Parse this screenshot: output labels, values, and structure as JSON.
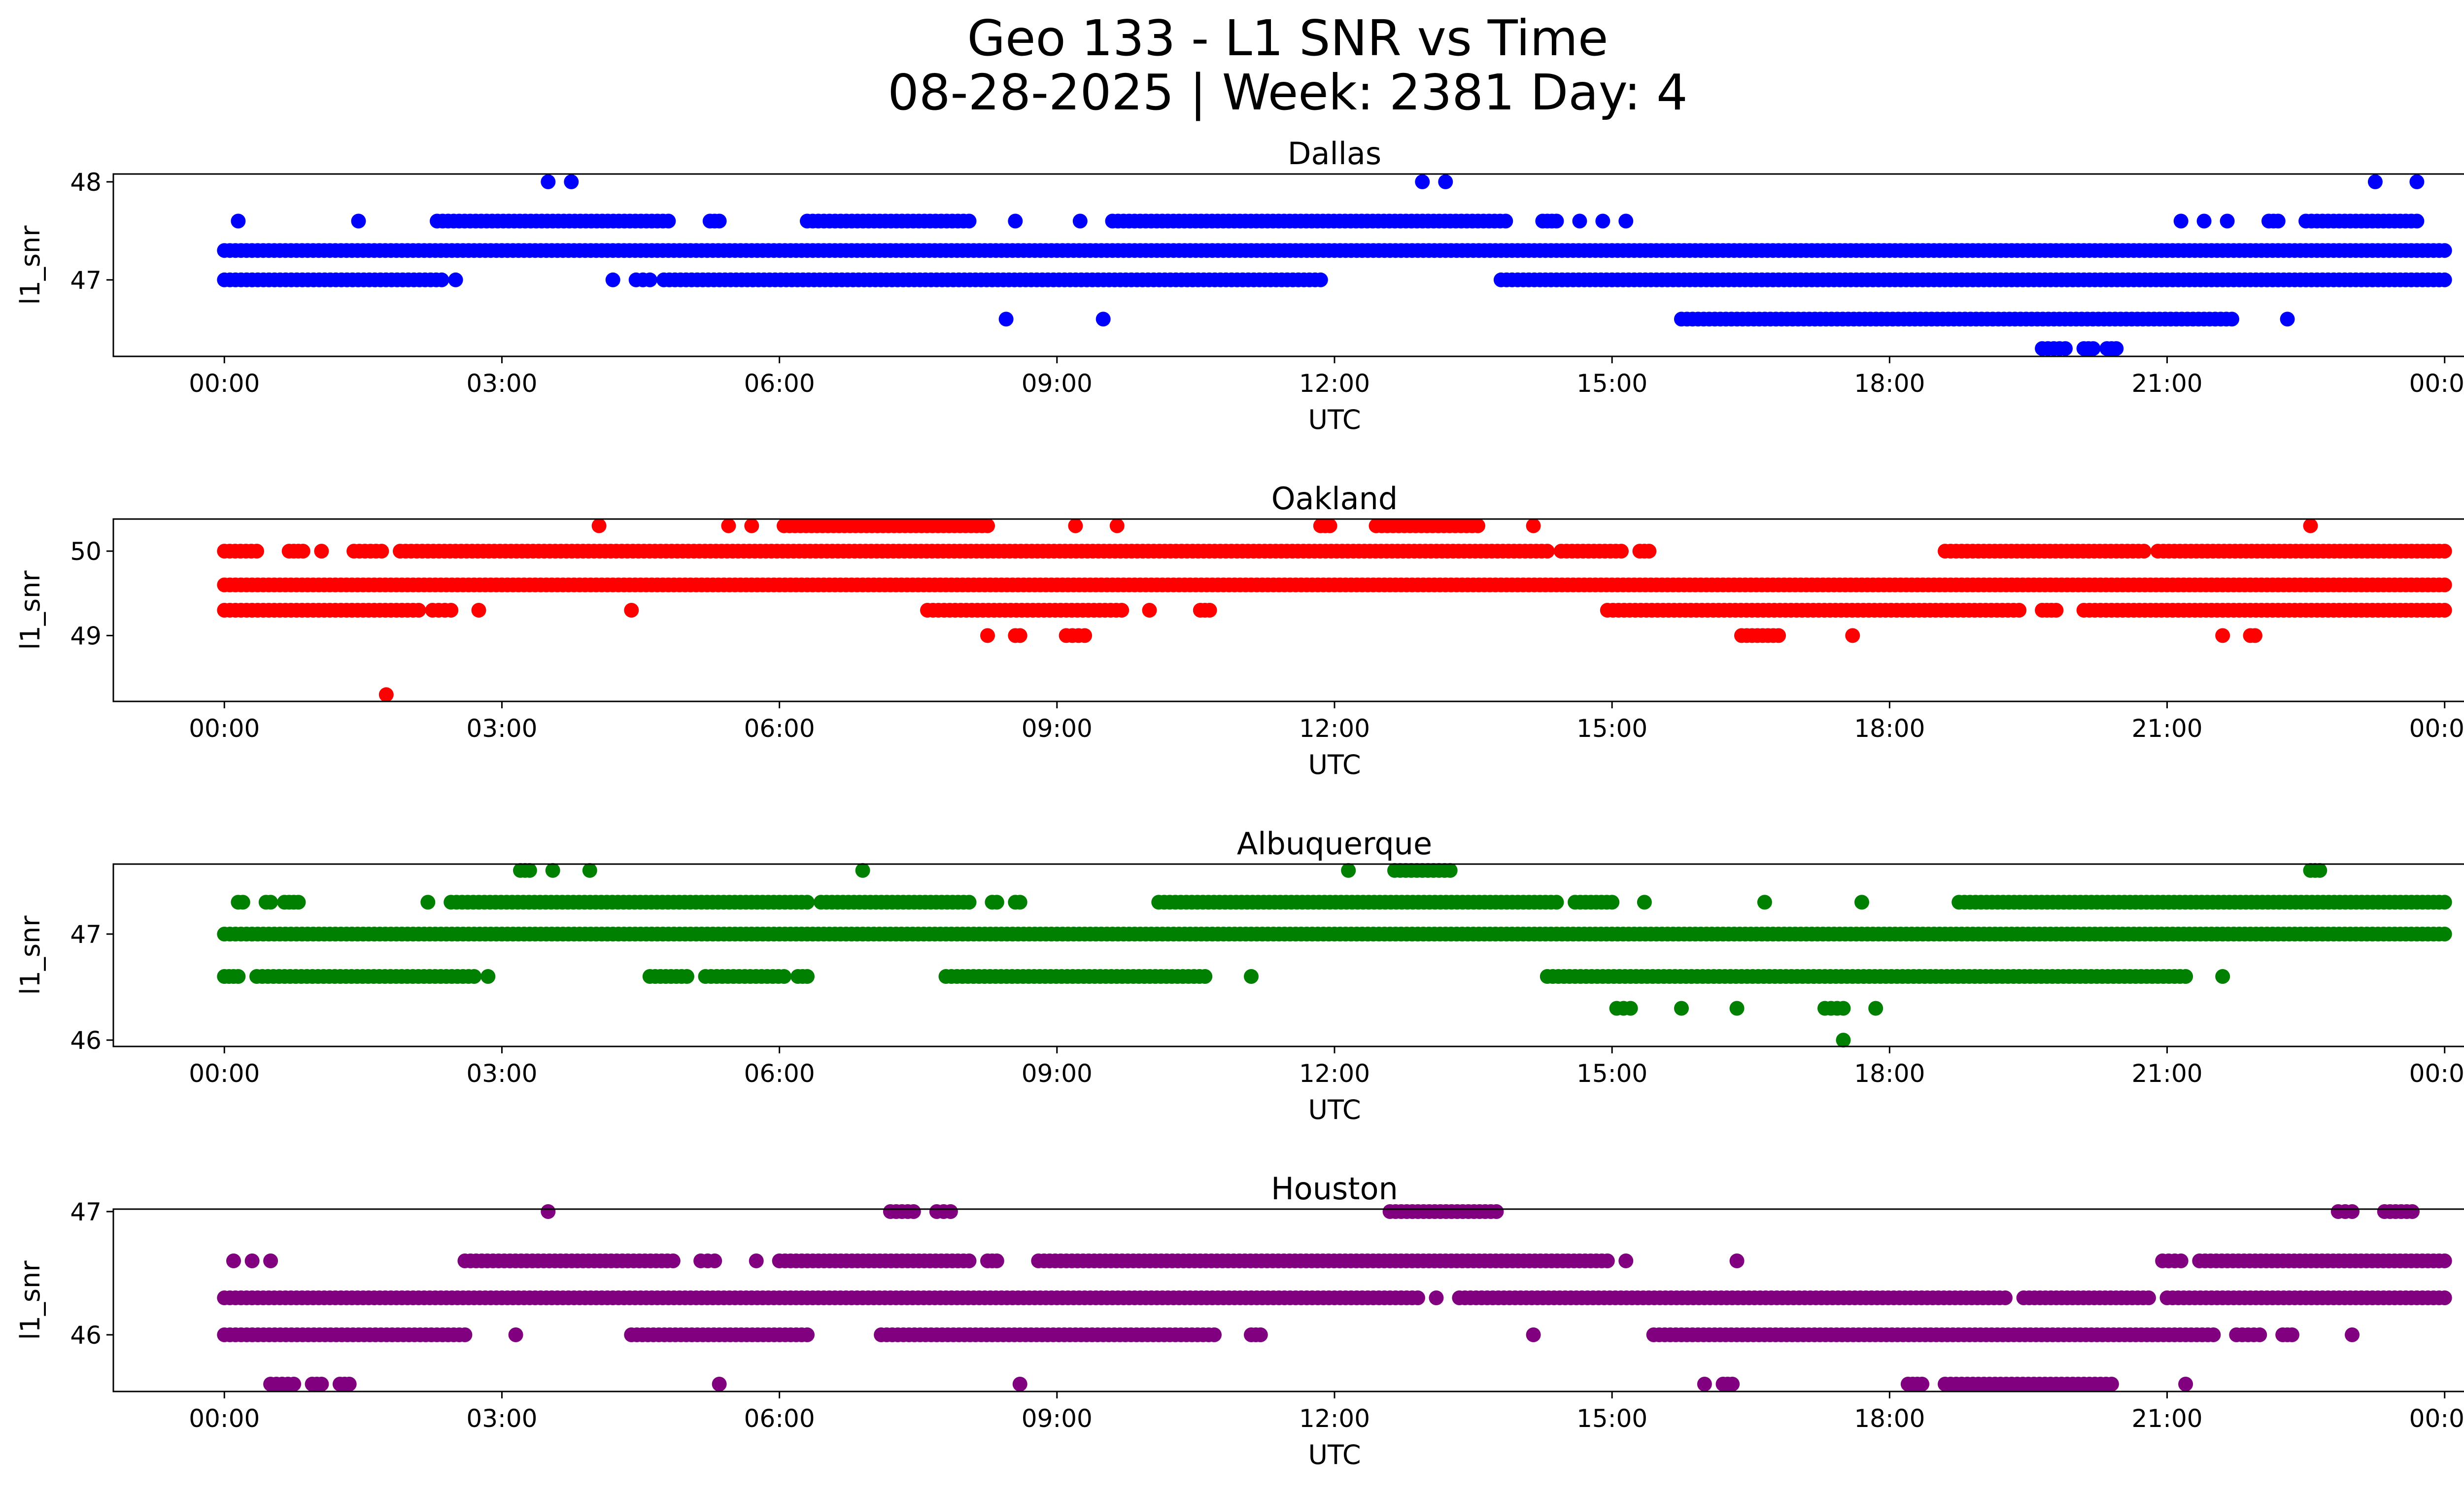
{
  "figure": {
    "title_line1": "Geo 133 - L1 SNR vs Time",
    "title_line2": "08-28-2025 | Week: 2381 Day: 4"
  },
  "chart_data": [
    {
      "type": "scatter",
      "title": "Dallas",
      "xlabel": "UTC",
      "ylabel": "l1_snr",
      "color": "#0000ff",
      "xlim_hours": [
        -1.2,
        25.2
      ],
      "ylim": [
        46.22,
        48.08
      ],
      "xtick_hours": [
        0,
        3,
        6,
        9,
        12,
        15,
        18,
        21,
        24
      ],
      "xtick_labels": [
        "00:00",
        "03:00",
        "06:00",
        "09:00",
        "12:00",
        "15:00",
        "18:00",
        "21:00",
        "00:00"
      ],
      "yticks": [
        47,
        48
      ],
      "bands": [
        {
          "y": 47.3,
          "segments": [
            [
              0.0,
              24.0
            ]
          ]
        },
        {
          "y": 47.0,
          "segments": [
            [
              0.0,
              2.35
            ],
            [
              2.5,
              2.5
            ],
            [
              4.2,
              4.2
            ],
            [
              4.45,
              4.6
            ],
            [
              4.75,
              11.85
            ],
            [
              13.8,
              24.0
            ]
          ]
        },
        {
          "y": 47.6,
          "segments": [
            [
              0.15,
              0.15
            ],
            [
              1.45,
              1.45
            ],
            [
              2.3,
              4.8
            ],
            [
              5.25,
              5.35
            ],
            [
              6.3,
              8.05
            ],
            [
              8.55,
              8.55
            ],
            [
              9.25,
              9.25
            ],
            [
              9.6,
              13.85
            ],
            [
              14.25,
              14.4
            ],
            [
              14.65,
              14.65
            ],
            [
              14.9,
              14.9
            ],
            [
              15.15,
              15.15
            ],
            [
              21.15,
              21.15
            ],
            [
              21.4,
              21.4
            ],
            [
              21.65,
              21.65
            ],
            [
              22.1,
              22.2
            ],
            [
              22.5,
              23.7
            ]
          ]
        },
        {
          "y": 48.0,
          "segments": [
            [
              3.5,
              3.5
            ],
            [
              3.75,
              3.75
            ],
            [
              12.95,
              12.95
            ],
            [
              13.2,
              13.2
            ],
            [
              23.25,
              23.25
            ],
            [
              23.7,
              23.7
            ]
          ]
        },
        {
          "y": 46.6,
          "segments": [
            [
              8.45,
              8.45
            ],
            [
              9.5,
              9.5
            ],
            [
              15.75,
              21.7
            ],
            [
              22.3,
              22.3
            ]
          ]
        },
        {
          "y": 46.3,
          "segments": [
            [
              19.65,
              19.9
            ],
            [
              20.1,
              20.2
            ],
            [
              20.35,
              20.45
            ]
          ]
        }
      ]
    },
    {
      "type": "scatter",
      "title": "Oakland",
      "xlabel": "UTC",
      "ylabel": "l1_snr",
      "color": "#ff0000",
      "xlim_hours": [
        -1.2,
        25.2
      ],
      "ylim": [
        48.22,
        50.38
      ],
      "xtick_hours": [
        0,
        3,
        6,
        9,
        12,
        15,
        18,
        21,
        24
      ],
      "xtick_labels": [
        "00:00",
        "03:00",
        "06:00",
        "09:00",
        "12:00",
        "15:00",
        "18:00",
        "21:00",
        "00:00"
      ],
      "yticks": [
        49,
        50
      ],
      "bands": [
        {
          "y": 49.6,
          "segments": [
            [
              0.0,
              24.0
            ]
          ]
        },
        {
          "y": 50.0,
          "segments": [
            [
              0.0,
              0.35
            ],
            [
              0.7,
              0.85
            ],
            [
              1.05,
              1.05
            ],
            [
              1.4,
              1.7
            ],
            [
              1.9,
              14.3
            ],
            [
              14.45,
              15.1
            ],
            [
              15.3,
              15.4
            ],
            [
              18.6,
              20.75
            ],
            [
              20.9,
              24.0
            ]
          ]
        },
        {
          "y": 49.3,
          "segments": [
            [
              0.0,
              2.1
            ],
            [
              2.25,
              2.45
            ],
            [
              2.75,
              2.75
            ],
            [
              4.4,
              4.4
            ],
            [
              7.6,
              9.7
            ],
            [
              10.0,
              10.0
            ],
            [
              10.55,
              10.65
            ],
            [
              14.95,
              19.4
            ],
            [
              19.65,
              19.8
            ],
            [
              20.1,
              24.0
            ]
          ]
        },
        {
          "y": 50.3,
          "segments": [
            [
              4.05,
              4.05
            ],
            [
              5.45,
              5.45
            ],
            [
              5.7,
              5.7
            ],
            [
              6.05,
              8.25
            ],
            [
              9.2,
              9.2
            ],
            [
              9.65,
              9.65
            ],
            [
              11.85,
              11.95
            ],
            [
              12.45,
              13.55
            ],
            [
              14.15,
              14.15
            ],
            [
              22.55,
              22.55
            ]
          ]
        },
        {
          "y": 49.0,
          "segments": [
            [
              8.25,
              8.25
            ],
            [
              8.55,
              8.6
            ],
            [
              9.1,
              9.3
            ],
            [
              16.4,
              16.8
            ],
            [
              17.6,
              17.6
            ],
            [
              21.6,
              21.6
            ],
            [
              21.9,
              21.95
            ]
          ]
        },
        {
          "y": 48.3,
          "segments": [
            [
              1.75,
              1.75
            ]
          ]
        }
      ]
    },
    {
      "type": "scatter",
      "title": "Albuquerque",
      "xlabel": "UTC",
      "ylabel": "l1_snr",
      "color": "#008000",
      "xlim_hours": [
        -1.2,
        25.2
      ],
      "ylim": [
        45.94,
        47.66
      ],
      "xtick_hours": [
        0,
        3,
        6,
        9,
        12,
        15,
        18,
        21,
        24
      ],
      "xtick_labels": [
        "00:00",
        "03:00",
        "06:00",
        "09:00",
        "12:00",
        "15:00",
        "18:00",
        "21:00",
        "00:00"
      ],
      "yticks": [
        46,
        47
      ],
      "bands": [
        {
          "y": 47.0,
          "segments": [
            [
              0.0,
              24.0
            ]
          ]
        },
        {
          "y": 47.3,
          "segments": [
            [
              0.15,
              0.2
            ],
            [
              0.45,
              0.5
            ],
            [
              0.65,
              0.8
            ],
            [
              2.2,
              2.2
            ],
            [
              2.45,
              6.3
            ],
            [
              6.45,
              8.05
            ],
            [
              8.3,
              8.35
            ],
            [
              8.55,
              8.6
            ],
            [
              10.1,
              14.4
            ],
            [
              14.6,
              15.0
            ],
            [
              15.35,
              15.35
            ],
            [
              16.65,
              16.65
            ],
            [
              17.7,
              17.7
            ],
            [
              18.75,
              24.0
            ]
          ]
        },
        {
          "y": 46.6,
          "segments": [
            [
              0.0,
              0.15
            ],
            [
              0.35,
              2.7
            ],
            [
              2.85,
              2.85
            ],
            [
              4.6,
              5.0
            ],
            [
              5.2,
              6.05
            ],
            [
              6.2,
              6.3
            ],
            [
              7.8,
              10.6
            ],
            [
              11.1,
              11.1
            ],
            [
              14.3,
              21.2
            ],
            [
              21.6,
              21.6
            ]
          ]
        },
        {
          "y": 47.6,
          "segments": [
            [
              3.2,
              3.3
            ],
            [
              3.55,
              3.55
            ],
            [
              3.95,
              3.95
            ],
            [
              6.9,
              6.9
            ],
            [
              12.15,
              12.15
            ],
            [
              12.65,
              13.25
            ],
            [
              22.55,
              22.65
            ]
          ]
        },
        {
          "y": 46.3,
          "segments": [
            [
              15.05,
              15.2
            ],
            [
              15.75,
              15.75
            ],
            [
              16.35,
              16.35
            ],
            [
              17.3,
              17.5
            ],
            [
              17.85,
              17.85
            ]
          ]
        },
        {
          "y": 46.0,
          "segments": [
            [
              17.5,
              17.5
            ]
          ]
        }
      ]
    },
    {
      "type": "scatter",
      "title": "Houston",
      "xlabel": "UTC",
      "ylabel": "l1_snr",
      "color": "#800080",
      "xlim_hours": [
        -1.2,
        25.2
      ],
      "ylim": [
        45.54,
        47.02
      ],
      "xtick_hours": [
        0,
        3,
        6,
        9,
        12,
        15,
        18,
        21,
        24
      ],
      "xtick_labels": [
        "00:00",
        "03:00",
        "06:00",
        "09:00",
        "12:00",
        "15:00",
        "18:00",
        "21:00",
        "00:00"
      ],
      "yticks": [
        46,
        47
      ],
      "bands": [
        {
          "y": 46.3,
          "segments": [
            [
              0.0,
              12.9
            ],
            [
              13.1,
              13.1
            ],
            [
              13.35,
              19.25
            ],
            [
              19.45,
              20.8
            ],
            [
              21.0,
              24.0
            ]
          ]
        },
        {
          "y": 46.6,
          "segments": [
            [
              0.1,
              0.1
            ],
            [
              0.3,
              0.3
            ],
            [
              0.5,
              0.5
            ],
            [
              2.6,
              4.85
            ],
            [
              5.15,
              5.3
            ],
            [
              5.75,
              5.75
            ],
            [
              6.0,
              8.05
            ],
            [
              8.25,
              8.35
            ],
            [
              8.8,
              14.95
            ],
            [
              15.15,
              15.15
            ],
            [
              16.35,
              16.35
            ],
            [
              20.95,
              21.15
            ],
            [
              21.35,
              24.0
            ]
          ]
        },
        {
          "y": 46.0,
          "segments": [
            [
              0.0,
              2.6
            ],
            [
              3.15,
              3.15
            ],
            [
              4.4,
              6.3
            ],
            [
              7.1,
              10.7
            ],
            [
              11.1,
              11.2
            ],
            [
              14.15,
              14.15
            ],
            [
              15.45,
              21.5
            ],
            [
              21.75,
              22.0
            ],
            [
              22.25,
              22.35
            ],
            [
              23.0,
              23.0
            ]
          ]
        },
        {
          "y": 45.6,
          "segments": [
            [
              0.5,
              0.75
            ],
            [
              0.95,
              1.05
            ],
            [
              1.25,
              1.35
            ],
            [
              5.35,
              5.35
            ],
            [
              8.6,
              8.6
            ],
            [
              16.0,
              16.0
            ],
            [
              16.2,
              16.3
            ],
            [
              18.2,
              18.35
            ],
            [
              18.6,
              20.4
            ],
            [
              21.2,
              21.2
            ]
          ]
        },
        {
          "y": 47.0,
          "segments": [
            [
              3.5,
              3.5
            ],
            [
              7.2,
              7.45
            ],
            [
              7.7,
              7.85
            ],
            [
              12.6,
              13.75
            ],
            [
              22.85,
              23.0
            ],
            [
              23.35,
              23.65
            ]
          ]
        }
      ]
    }
  ]
}
